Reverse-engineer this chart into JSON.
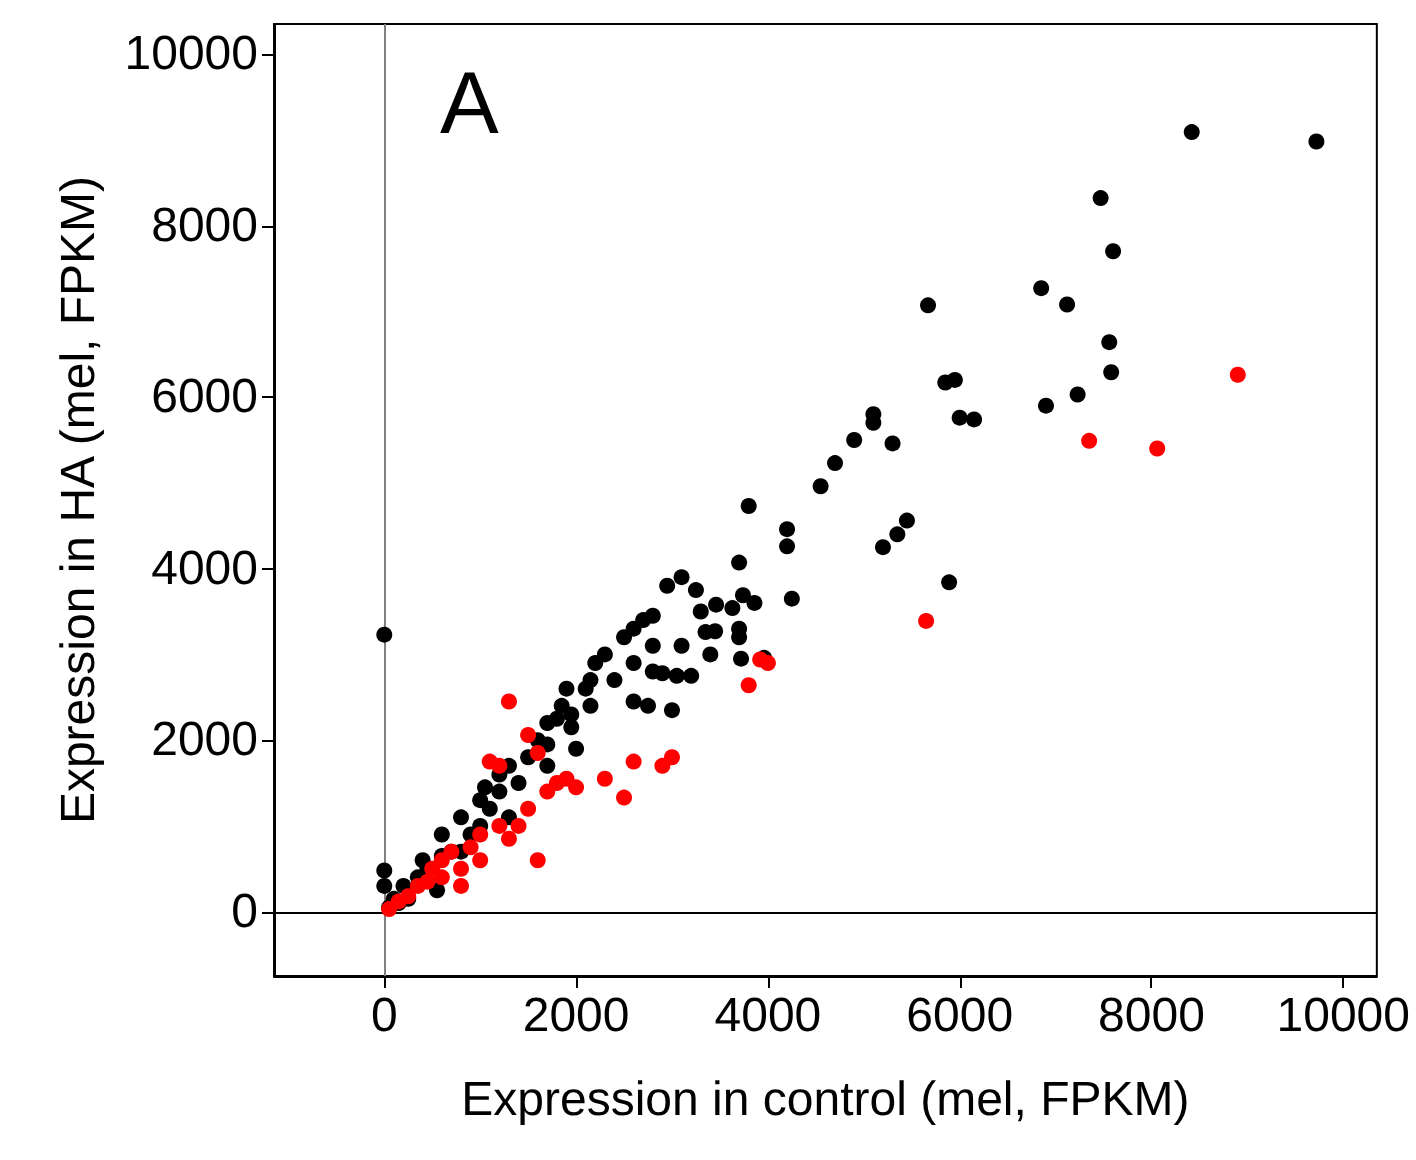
{
  "chart_data": {
    "type": "scatter",
    "xlabel": "Expression in control (mel, FPKM)",
    "ylabel": "Expression in HA (mel, FPKM)",
    "annotations": [
      "A"
    ],
    "xlim": [
      -1150,
      10350
    ],
    "ylim": [
      -750,
      10350
    ],
    "xticks": [
      0,
      2000,
      4000,
      6000,
      8000,
      10000
    ],
    "yticks": [
      0,
      2000,
      4000,
      6000,
      8000,
      10000
    ],
    "grid": false,
    "marker": "circle",
    "ref_lines": [
      {
        "axis": "x",
        "value": 0,
        "label": null,
        "color": "#808080"
      },
      {
        "axis": "y",
        "value": 0,
        "label": null,
        "color": "#000000"
      }
    ],
    "series": [
      {
        "color": "#000000",
        "x": [
          0,
          8420,
          9720,
          7470,
          7600,
          7120,
          5670,
          6850,
          7560,
          7580,
          5850,
          5950,
          6900,
          7230,
          6000,
          6150,
          5100,
          5100,
          4900,
          5300,
          4700,
          4550,
          4200,
          3800,
          3700,
          4200,
          4250,
          3630,
          3740,
          3460,
          3250,
          3450,
          3350,
          5200,
          5350,
          5450,
          5890,
          3860,
          3720,
          3960,
          3100,
          2950,
          2800,
          2700,
          2600,
          3100,
          2600,
          2900,
          2200,
          2300,
          2150,
          2100,
          1850,
          1800,
          1600,
          1200,
          1300,
          1000,
          800,
          600,
          400,
          200,
          100,
          50,
          0,
          0,
          1400,
          1500,
          2000,
          1700,
          1950,
          2500,
          2600,
          2750,
          3050,
          3200,
          3000,
          2800,
          1100,
          900,
          700,
          150,
          1300,
          1000,
          2400,
          2800,
          3300,
          3400,
          3700,
          1700,
          1900,
          800,
          1050,
          1200,
          600,
          350,
          450,
          250,
          550,
          1700,
          1950,
          2150,
          3700
        ],
        "values": [
          3230,
          9090,
          8980,
          8320,
          7700,
          7080,
          7070,
          7270,
          6640,
          6290,
          6170,
          6200,
          5900,
          6030,
          5760,
          5740,
          5800,
          5700,
          5500,
          5460,
          5230,
          4960,
          4460,
          4730,
          4070,
          4260,
          3650,
          3540,
          3690,
          3580,
          3750,
          3270,
          3260,
          4250,
          4400,
          4560,
          3840,
          3600,
          2950,
          2960,
          3900,
          3800,
          3450,
          3400,
          3300,
          3100,
          2900,
          2780,
          2900,
          3000,
          2700,
          2600,
          2400,
          2250,
          2000,
          1600,
          1700,
          1300,
          1100,
          900,
          600,
          300,
          150,
          50,
          480,
          300,
          1500,
          1800,
          1900,
          1700,
          2150,
          3200,
          2450,
          2400,
          2750,
          2750,
          2350,
          2800,
          1200,
          900,
          700,
          100,
          1100,
          1000,
          2700,
          3100,
          3500,
          3000,
          3200,
          2200,
          2600,
          700,
          1450,
          1400,
          650,
          400,
          500,
          150,
          250,
          1950,
          2300,
          2400,
          3300
        ]
      },
      {
        "color": "#ff0000",
        "x": [
          8900,
          7350,
          8060,
          5650,
          3800,
          4000,
          3920,
          2900,
          3000,
          2600,
          2500,
          2300,
          1500,
          1300,
          1200,
          1100,
          1600,
          1800,
          2000,
          1600,
          1400,
          1200,
          1000,
          1000,
          900,
          800,
          700,
          600,
          500,
          50,
          150,
          250,
          350,
          450,
          1700,
          1900,
          1500,
          1300,
          800,
          600
        ],
        "values": [
          6260,
          5490,
          5400,
          3390,
          2640,
          2900,
          2940,
          1700,
          1800,
          1750,
          1330,
          1550,
          2060,
          2450,
          1700,
          1750,
          1850,
          1500,
          1450,
          600,
          1000,
          1000,
          900,
          600,
          750,
          500,
          700,
          600,
          500,
          30,
          120,
          180,
          300,
          350,
          1400,
          1550,
          1200,
          850,
          300,
          400
        ]
      }
    ]
  }
}
